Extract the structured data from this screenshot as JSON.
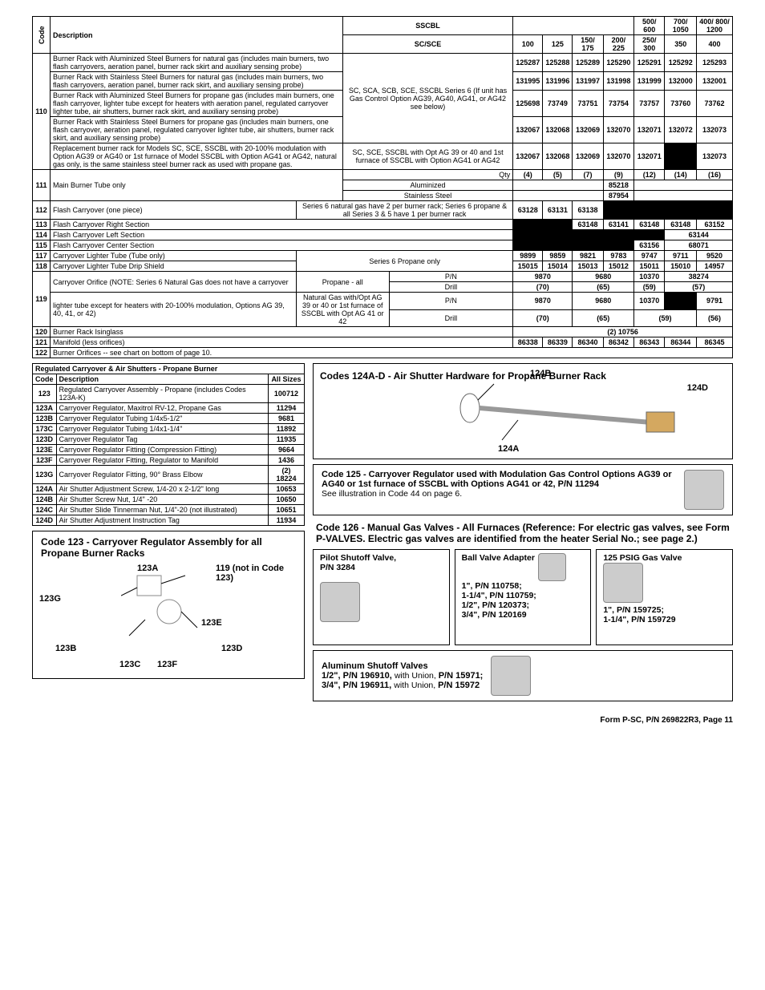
{
  "main": {
    "head": {
      "code": "Code",
      "desc": "Description",
      "sscbl": "SSCBL",
      "scsce": "SC/SCE",
      "c100": "100",
      "c125": "125",
      "c150": "150/ 175",
      "c200": "200/ 225",
      "c250": "250/ 300",
      "c350": "350",
      "c400": "400",
      "h500": "500/ 600",
      "h700": "700/ 1050",
      "h400": "400/ 800/ 1200"
    },
    "r110": {
      "code": "110",
      "d1": "Burner Rack with Aluminized Steel Burners for natural gas (includes main burners, two flash carryovers, aeration panel, burner rack skirt and auxiliary sensing probe)",
      "d2": "Burner Rack with Stainless Steel Burners for natural gas (includes main burners, two flash carryovers, aeration panel, burner rack skirt, and auxiliary sensing probe)",
      "d3": "Burner Rack with Aluminized Steel Burners for propane gas (includes main burners, one flash carryover, lighter tube except for heaters with aeration panel, regulated carryover lighter tube, air shutters, burner rack skirt, and auxiliary sensing probe)",
      "d4": "Burner Rack with Stainless Steel Burners for propane gas (includes main burners, one flash carryover, aeration panel, regulated carryover lighter tube, air shutters, burner rack skirt, and auxiliary sensing probe)",
      "d5": "Replacement burner rack for Models SC, SCE, SSCBL with 20-100% modulation with Option AG39 or AG40 or 1st furnace of Model SSCBL with Option AG41 or AG42, natural gas only, is the same stainless steel burner rack as used with propane gas.",
      "n1": "SC, SCA, SCB, SCE, SSCBL Series 6 (If unit has Gas Control Option AG39, AG40, AG41, or AG42 see below)",
      "n2": "SC, SCE, SSCBL with Opt AG 39 or 40 and 1st furnace of SSCBL with Option AG41 or AG42",
      "row1": [
        "125287",
        "125288",
        "125289",
        "125290",
        "125291",
        "125292",
        "125293"
      ],
      "row2": [
        "131995",
        "131996",
        "131997",
        "131998",
        "131999",
        "132000",
        "132001"
      ],
      "row3": [
        "125698",
        "73749",
        "73751",
        "73754",
        "73757",
        "73760",
        "73762"
      ],
      "row4": [
        "132067",
        "132068",
        "132069",
        "132070",
        "132071",
        "132072",
        "132073"
      ],
      "row5": [
        "132067",
        "132068",
        "132069",
        "132070",
        "132071",
        "",
        "132073"
      ]
    },
    "r111": {
      "code": "111",
      "desc": "Main Burner Tube only",
      "qty": "Qty",
      "al": "Aluminized",
      "ss": "Stainless Steel",
      "q": [
        "(4)",
        "(5)",
        "(7)",
        "(9)",
        "(12)",
        "(14)",
        "(16)"
      ],
      "v1": "85218",
      "v2": "87954"
    },
    "r112": {
      "code": "112",
      "desc": "Flash Carryover (one piece)",
      "note": "Series 6 natural gas have 2 per burner rack; Series 6 propane & all Series 3 & 5 have 1 per burner rack",
      "v": [
        "63128",
        "63131",
        "63138"
      ]
    },
    "r113": {
      "code": "113",
      "desc": "Flash Carryover Right Section",
      "v": [
        "63148",
        "63141",
        "63148",
        "63148",
        "63152"
      ]
    },
    "r114": {
      "code": "114",
      "desc": "Flash Carryover Left Section",
      "v": "63144"
    },
    "r115": {
      "code": "115",
      "desc": "Flash Carryover Center Section",
      "v": [
        "63156",
        "68071"
      ]
    },
    "r117": {
      "code": "117",
      "desc": "Carryover Lighter Tube (Tube only)",
      "note": "Series 6 Propane only",
      "v": [
        "9899",
        "9859",
        "9821",
        "9783",
        "9747",
        "9711",
        "9520"
      ]
    },
    "r118": {
      "code": "118",
      "desc": "Carryover Lighter Tube Drip Shield",
      "v": [
        "15015",
        "15014",
        "15013",
        "15012",
        "15011",
        "15010",
        "14957"
      ]
    },
    "r119": {
      "code": "119",
      "d1": "Carryover Orifice (NOTE: Series 6 Natural Gas does not have a carryover",
      "d2": "lighter tube except for heaters with 20-100% modulation, Options AG 39, 40, 41, or 42)",
      "n1": "Propane - all",
      "n2": "Natural Gas with/Opt AG 39 or 40 or 1st furnace of SSCBL with Opt AG 41 or 42",
      "pn": "P/N",
      "drill": "Drill",
      "pa_pn": [
        "9870",
        "9680",
        "10370",
        "38274"
      ],
      "pa_dr": [
        "(70)",
        "(65)",
        "(59)",
        "(57)"
      ],
      "ng_pn": [
        "9870",
        "9680",
        "10370",
        "",
        "9791"
      ],
      "ng_dr": [
        "(70)",
        "(65)",
        "(59)",
        "(56)"
      ]
    },
    "r120": {
      "code": "120",
      "desc": "Burner Rack Isinglass",
      "v": "(2) 10756"
    },
    "r121": {
      "code": "121",
      "desc": "Manifold (less orifices)",
      "v": [
        "86338",
        "86339",
        "86340",
        "86342",
        "86343",
        "86344",
        "86345"
      ]
    },
    "r122": {
      "code": "122",
      "desc": "Burner Orifices -- see chart on bottom of page 10."
    }
  },
  "prop": {
    "title": "Regulated Carryover & Air Shutters - Propane Burner",
    "hCode": "Code",
    "hDesc": "Description",
    "hAll": "All Sizes",
    "rows": [
      {
        "c": "123",
        "d": "Regulated Carryover Assembly - Propane (includes Codes 123A-K)",
        "v": "100712"
      },
      {
        "c": "123A",
        "d": "Carryover Regulator, Maxitrol RV-12, Propane Gas",
        "v": "11294"
      },
      {
        "c": "123B",
        "d": "Carryover Regulator Tubing 1/4x5-1/2\"",
        "v": "9681"
      },
      {
        "c": "173C",
        "d": "Carryover Regulator Tubing 1/4x1-1/4\"",
        "v": "11892"
      },
      {
        "c": "123D",
        "d": "Carryover Regulator Tag",
        "v": "11935"
      },
      {
        "c": "123E",
        "d": "Carryover Regulator Fitting (Compression Fitting)",
        "v": "9664"
      },
      {
        "c": "123F",
        "d": "Carryover Regulator Fitting, Regulator to Manifold",
        "v": "1436"
      },
      {
        "c": "123G",
        "d": "Carryover Regulator Fitting, 90° Brass Elbow",
        "v": "(2) 18224"
      },
      {
        "c": "124A",
        "d": "Air Shutter Adjustment Screw, 1/4-20 x 2-1/2\" long",
        "v": "10653"
      },
      {
        "c": "124B",
        "d": "Air Shutter Screw Nut, 1/4\" -20",
        "v": "10650"
      },
      {
        "c": "124C",
        "d": "Air Shutter Slide Tinnerman Nut, 1/4\"-20 (not illustrated)",
        "v": "10651"
      },
      {
        "c": "124D",
        "d": "Air Shutter Adjustment Instruction Tag",
        "v": "11934"
      }
    ]
  },
  "asm": {
    "title": "Code 123 - Carryover Regulator Assembly for all Propane Burner Racks",
    "l": {
      "a": "123A",
      "b": "123B",
      "c": "123C",
      "d": "123D",
      "e": "123E",
      "f": "123F",
      "g": "123G",
      "n": "119 (not in Code 123)"
    }
  },
  "air": {
    "title": "Codes 124A-D - Air Shutter Hardware for Propane Burner Rack",
    "b": "124B",
    "a": "124A",
    "d": "124D"
  },
  "c125": {
    "t1": "Code 125 - Carryover Regulator used with Modulation Gas Control Options AG39 or AG40 or 1st furnace of SSCBL with Options AG41 or 42, P/N 11294",
    "t2": "See illustration in Code 44 on page 6."
  },
  "c126": {
    "t": "Code 126 - Manual Gas Valves - All Furnaces (Reference: For electric gas valves, see Form P-VALVES. Electric gas valves are identified from the heater Serial No.; see page 2.)"
  },
  "valves": {
    "pilot": {
      "t": "Pilot Shutoff Valve,",
      "pn": "P/N 3284"
    },
    "ball": {
      "t": "Ball Valve Adapter",
      "l1": "1\", P/N 110758;",
      "l2": "1-1/4\", P/N 110759;",
      "l3": "1/2\", P/N 120373;",
      "l4": "3/4\", P/N 120169"
    },
    "psig": {
      "t": "125 PSIG Gas Valve",
      "l1": "1\", P/N 159725;",
      "l2": "1-1/4\", P/N 159729"
    },
    "alu": {
      "t": "Aluminum Shutoff Valves",
      "l1": "1/2\", P/N 196910, ",
      "l1b": "with Union, ",
      "l1c": "P/N 15971;",
      "l2": "3/4\", P/N 196911, ",
      "l2b": "with Union, ",
      "l2c": "P/N 15972"
    }
  },
  "footer": "Form P-SC, P/N 269822R3, Page 11"
}
